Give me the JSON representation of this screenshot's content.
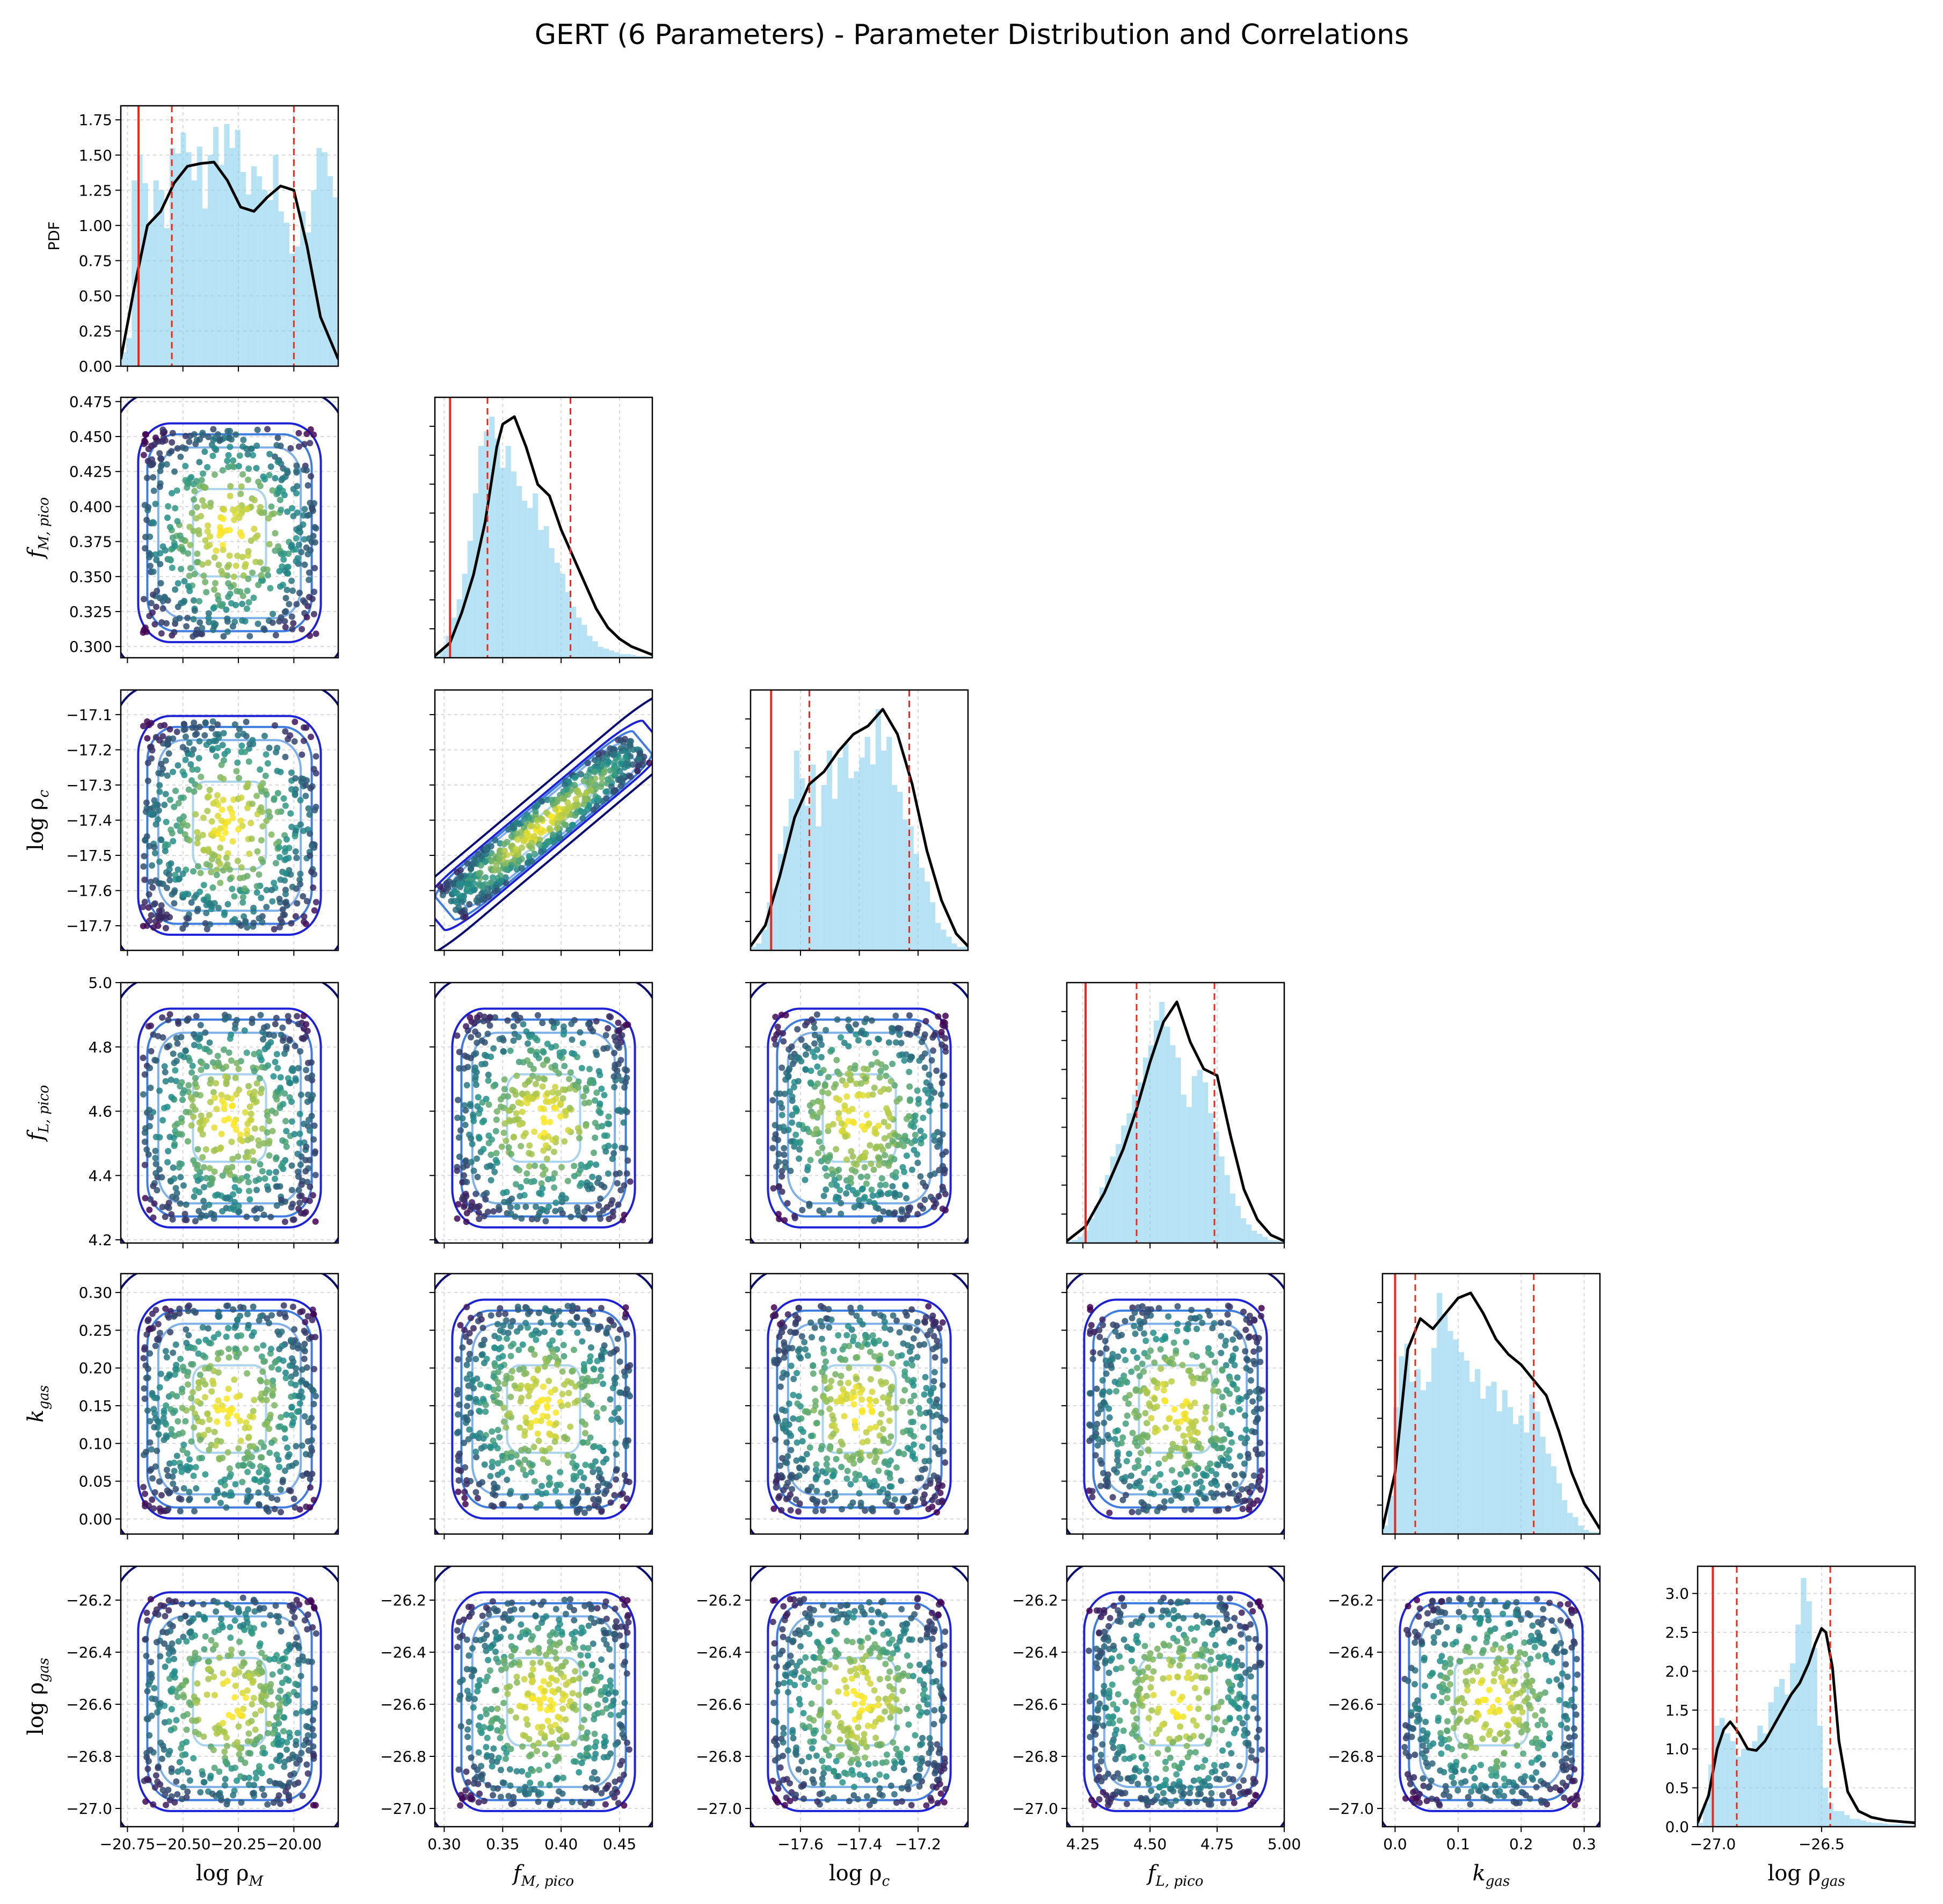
{
  "title": "GERT (6 Parameters) - Parameter Distribution and Correlations",
  "colors": {
    "hist": "#87ceeb",
    "kde": "#000000",
    "ref_line": "#e8291c",
    "contours": [
      "#0b0c70",
      "#1e22d6",
      "#3f7de0",
      "#7fb0e8",
      "#a9d3ef"
    ],
    "scatter_low": "#440154",
    "scatter_high": "#fde725"
  },
  "chart_data": {
    "type": "corner",
    "pdf_label": "PDF",
    "params": [
      {
        "key": "log_rho_M",
        "label": "log ρ",
        "sub": "M",
        "range": [
          -20.78,
          -19.8
        ],
        "ticks": [
          -20.75,
          -20.5,
          -20.25,
          -20.0
        ],
        "tick_labels": [
          "−20.75",
          "−20.50",
          "−20.25",
          "−20.00"
        ],
        "ref": -20.7,
        "q16": -20.55,
        "q84": -20.0
      },
      {
        "key": "f_M_pico",
        "label": "f",
        "sub": "M, pico",
        "range": [
          0.292,
          0.478
        ],
        "ticks": [
          0.3,
          0.325,
          0.35,
          0.375,
          0.4,
          0.425,
          0.45,
          0.475
        ],
        "tick_labels": [
          "0.300",
          "0.325",
          "0.350",
          "0.375",
          "0.400",
          "0.425",
          "0.450",
          "0.475"
        ],
        "xticks": [
          0.3,
          0.35,
          0.4,
          0.45
        ],
        "xtick_labels": [
          "0.30",
          "0.35",
          "0.40",
          "0.45"
        ],
        "ref": 0.305,
        "q16": 0.337,
        "q84": 0.408
      },
      {
        "key": "log_rho_c",
        "label": "log ρ",
        "sub": "c",
        "range": [
          -17.77,
          -17.03
        ],
        "ticks": [
          -17.1,
          -17.2,
          -17.3,
          -17.4,
          -17.5,
          -17.6,
          -17.7
        ],
        "tick_labels": [
          "−17.1",
          "−17.2",
          "−17.3",
          "−17.4",
          "−17.5",
          "−17.6",
          "−17.7"
        ],
        "xticks": [
          -17.6,
          -17.4,
          -17.2
        ],
        "xtick_labels": [
          "−17.6",
          "−17.4",
          "−17.2"
        ],
        "ref": -17.7,
        "q16": -17.57,
        "q84": -17.23
      },
      {
        "key": "f_L_pico",
        "label": "f",
        "sub": "L, pico",
        "range": [
          4.19,
          5.0
        ],
        "ticks": [
          4.2,
          4.4,
          4.6,
          4.8,
          5.0
        ],
        "tick_labels": [
          "4.2",
          "4.4",
          "4.6",
          "4.8",
          "5.0"
        ],
        "xticks": [
          4.25,
          4.5,
          4.75,
          5.0
        ],
        "xtick_labels": [
          "4.25",
          "4.50",
          "4.75",
          "5.00"
        ],
        "ref": 4.26,
        "q16": 4.45,
        "q84": 4.74
      },
      {
        "key": "k_gas",
        "label": "k",
        "sub": "gas",
        "range": [
          -0.02,
          0.325
        ],
        "ticks": [
          0.0,
          0.05,
          0.1,
          0.15,
          0.2,
          0.25,
          0.3
        ],
        "tick_labels": [
          "0.00",
          "0.05",
          "0.10",
          "0.15",
          "0.20",
          "0.25",
          "0.30"
        ],
        "xticks": [
          0.0,
          0.1,
          0.2,
          0.3
        ],
        "xtick_labels": [
          "0.0",
          "0.1",
          "0.2",
          "0.3"
        ],
        "ref": 0.0,
        "q16": 0.032,
        "q84": 0.22
      },
      {
        "key": "log_rho_gas",
        "label": "log ρ",
        "sub": "gas",
        "range": [
          -27.07,
          -26.07
        ],
        "ticks": [
          -26.2,
          -26.4,
          -26.6,
          -26.8,
          -27.0
        ],
        "tick_labels": [
          "−26.2",
          "−26.4",
          "−26.6",
          "−26.8",
          "−27.0"
        ],
        "xticks": [
          -27.0,
          -26.5
        ],
        "xtick_labels": [
          "−27.0",
          "−26.5"
        ],
        "ref": -27.0,
        "q16": -26.89,
        "q84": -26.46
      }
    ],
    "pdf_axis_1": {
      "ticks": [
        0.0,
        0.25,
        0.5,
        0.75,
        1.0,
        1.25,
        1.5,
        1.75
      ],
      "tick_labels": [
        "0.00",
        "0.25",
        "0.50",
        "0.75",
        "1.00",
        "1.25",
        "1.50",
        "1.75"
      ],
      "ylim": [
        0,
        1.85
      ]
    },
    "pdf_axis_6": {
      "ticks": [
        0.0,
        0.5,
        1.0,
        1.5,
        2.0,
        2.5,
        3.0
      ],
      "tick_labels": [
        "0.0",
        "0.5",
        "1.0",
        "1.5",
        "2.0",
        "2.5",
        "3.0"
      ],
      "ylim": [
        0,
        3.35
      ]
    },
    "kde_curves": [
      {
        "x": [
          -20.78,
          -20.72,
          -20.66,
          -20.6,
          -20.54,
          -20.48,
          -20.42,
          -20.36,
          -20.3,
          -20.24,
          -20.18,
          -20.12,
          -20.06,
          -20.0,
          -19.94,
          -19.88,
          -19.8
        ],
        "y": [
          0.05,
          0.55,
          1.0,
          1.1,
          1.3,
          1.42,
          1.44,
          1.45,
          1.32,
          1.13,
          1.1,
          1.2,
          1.28,
          1.25,
          0.85,
          0.35,
          0.05
        ]
      },
      {
        "x": [
          0.292,
          0.305,
          0.315,
          0.325,
          0.335,
          0.345,
          0.35,
          0.36,
          0.37,
          0.38,
          0.39,
          0.4,
          0.41,
          0.42,
          0.43,
          0.44,
          0.45,
          0.46,
          0.478
        ],
        "y": [
          0.05,
          0.4,
          1.2,
          2.2,
          3.6,
          5.6,
          6.2,
          6.4,
          5.6,
          4.6,
          4.3,
          3.4,
          2.7,
          2.0,
          1.3,
          0.8,
          0.5,
          0.3,
          0.08
        ]
      },
      {
        "x": [
          -17.77,
          -17.72,
          -17.67,
          -17.62,
          -17.57,
          -17.52,
          -17.47,
          -17.42,
          -17.37,
          -17.32,
          -17.27,
          -17.22,
          -17.17,
          -17.12,
          -17.07,
          -17.03
        ],
        "y": [
          0.05,
          0.3,
          0.9,
          1.6,
          2.0,
          2.15,
          2.4,
          2.6,
          2.7,
          2.9,
          2.6,
          2.0,
          1.2,
          0.6,
          0.2,
          0.05
        ]
      },
      {
        "x": [
          4.19,
          4.26,
          4.33,
          4.4,
          4.45,
          4.5,
          4.55,
          4.6,
          4.65,
          4.7,
          4.75,
          4.8,
          4.85,
          4.9,
          4.95,
          5.0
        ],
        "y": [
          0.03,
          0.25,
          0.75,
          1.4,
          2.0,
          2.7,
          3.3,
          3.6,
          3.0,
          2.6,
          2.5,
          1.6,
          0.8,
          0.35,
          0.12,
          0.03
        ]
      },
      {
        "x": [
          -0.02,
          0.0,
          0.02,
          0.04,
          0.06,
          0.08,
          0.1,
          0.12,
          0.14,
          0.16,
          0.18,
          0.2,
          0.22,
          0.24,
          0.26,
          0.28,
          0.3,
          0.325
        ],
        "y": [
          0.1,
          1.2,
          3.6,
          4.2,
          4.0,
          4.3,
          4.6,
          4.7,
          4.3,
          3.8,
          3.5,
          3.3,
          3.0,
          2.7,
          2.0,
          1.2,
          0.6,
          0.1
        ]
      },
      {
        "x": [
          -27.07,
          -27.02,
          -26.98,
          -26.95,
          -26.92,
          -26.88,
          -26.84,
          -26.8,
          -26.76,
          -26.72,
          -26.68,
          -26.64,
          -26.6,
          -26.56,
          -26.53,
          -26.5,
          -26.48,
          -26.45,
          -26.42,
          -26.38,
          -26.33,
          -26.27,
          -26.2,
          -26.07
        ],
        "y": [
          0.05,
          0.4,
          1.0,
          1.25,
          1.35,
          1.2,
          1.0,
          0.98,
          1.1,
          1.3,
          1.5,
          1.7,
          1.85,
          2.1,
          2.35,
          2.55,
          2.5,
          2.05,
          1.1,
          0.45,
          0.2,
          0.12,
          0.08,
          0.05
        ]
      }
    ],
    "hist_bins": [
      {
        "x0": -20.78,
        "dx": 0.0245,
        "h": [
          0.1,
          0.2,
          1.32,
          1.5,
          1.3,
          1.02,
          1.32,
          1.25,
          0.98,
          1.55,
          1.51,
          1.66,
          1.52,
          1.32,
          1.56,
          1.12,
          1.5,
          1.7,
          1.43,
          1.72,
          1.55,
          1.68,
          1.38,
          1.22,
          1.42,
          1.35,
          1.25,
          1.18,
          1.5,
          1.1,
          1.02,
          0.8,
          0.85,
          1.1,
          0.95,
          1.25,
          1.55,
          1.52,
          1.35,
          1.2
        ]
      },
      {
        "x0": 0.292,
        "dx": 0.00465,
        "h": [
          0.05,
          0.2,
          0.6,
          1.1,
          1.6,
          2.3,
          3.2,
          4.5,
          5.8,
          6.2,
          6.6,
          6.0,
          5.2,
          5.8,
          5.1,
          4.7,
          4.3,
          4.1,
          4.5,
          3.5,
          3.6,
          3.0,
          2.6,
          2.3,
          1.8,
          1.4,
          1.1,
          0.9,
          0.6,
          0.45,
          0.3,
          0.25,
          0.2,
          0.15,
          0.1,
          0.1,
          0.08,
          0.05,
          0.05,
          0.03
        ]
      },
      {
        "x0": -17.77,
        "dx": 0.0185,
        "h": [
          0.05,
          0.1,
          0.3,
          0.7,
          0.9,
          1.4,
          1.8,
          2.2,
          2.9,
          2.5,
          2.1,
          2.7,
          1.8,
          2.4,
          2.9,
          2.2,
          2.8,
          3.0,
          2.5,
          2.6,
          2.8,
          3.1,
          2.7,
          3.5,
          2.9,
          3.1,
          2.4,
          2.3,
          1.9,
          1.8,
          1.4,
          1.2,
          1.0,
          0.7,
          0.4,
          0.3,
          0.2,
          0.1,
          0.05,
          0.05
        ]
      },
      {
        "x0": 4.19,
        "dx": 0.02025,
        "h": [
          0.03,
          0.05,
          0.1,
          0.2,
          0.4,
          0.6,
          0.9,
          1.1,
          1.4,
          1.6,
          1.9,
          2.1,
          2.4,
          2.6,
          3.0,
          3.2,
          3.6,
          3.9,
          3.5,
          3.2,
          3.0,
          2.4,
          2.2,
          2.7,
          2.8,
          2.6,
          2.1,
          1.8,
          1.4,
          1.1,
          0.8,
          0.6,
          0.4,
          0.3,
          0.2,
          0.15,
          0.1,
          0.05,
          0.04,
          0.03
        ]
      },
      {
        "x0": -0.02,
        "dx": 0.008625,
        "h": [
          0.2,
          0.9,
          3.0,
          4.2,
          4.5,
          3.6,
          3.9,
          3.4,
          3.6,
          4.4,
          5.7,
          5.2,
          4.8,
          4.6,
          4.3,
          4.1,
          3.6,
          3.9,
          3.2,
          3.5,
          3.6,
          2.9,
          3.4,
          3.0,
          2.6,
          2.8,
          2.4,
          3.3,
          2.9,
          2.3,
          1.9,
          1.6,
          1.2,
          0.8,
          0.5,
          0.4,
          0.2,
          0.1,
          0.05,
          0.05
        ]
      },
      {
        "x0": -27.07,
        "dx": 0.025,
        "h": [
          0.05,
          0.3,
          0.8,
          1.3,
          1.4,
          1.2,
          1.1,
          0.9,
          1.0,
          1.0,
          1.1,
          1.3,
          1.2,
          1.6,
          1.8,
          1.9,
          1.7,
          2.1,
          2.6,
          3.2,
          2.9,
          2.3,
          1.3,
          0.5,
          0.3,
          0.2,
          0.2,
          0.15,
          0.1,
          0.1,
          0.08,
          0.06,
          0.05,
          0.05,
          0.04,
          0.03,
          0.03,
          0.03,
          0.02,
          0.02
        ]
      }
    ]
  }
}
